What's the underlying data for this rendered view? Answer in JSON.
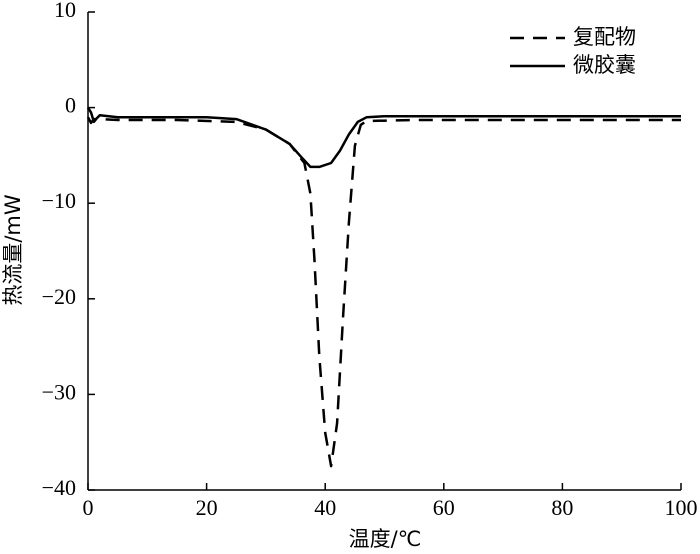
{
  "chart_data": {
    "type": "line",
    "xlabel": "温度/℃",
    "ylabel": "热流量/mW",
    "xlim": [
      0,
      100
    ],
    "ylim": [
      -40,
      10
    ],
    "xticks": [
      0,
      20,
      40,
      60,
      80,
      100
    ],
    "yticks": [
      {
        "value": -40,
        "label": "−40"
      },
      {
        "value": -30,
        "label": "−30"
      },
      {
        "value": -20,
        "label": "−20"
      },
      {
        "value": -10,
        "label": "−10"
      },
      0,
      10
    ],
    "legend": "upper right",
    "series": [
      {
        "name": "复配物",
        "color": "#000000",
        "dashed": true,
        "x": [
          0,
          0.5,
          1,
          2,
          5,
          15,
          25,
          30,
          34,
          36.5,
          37.5,
          38.2,
          39,
          40,
          41,
          42,
          43,
          44,
          45,
          46,
          47,
          55,
          100
        ],
        "values": [
          -1,
          -1.6,
          -1.2,
          -1.2,
          -1.3,
          -1.3,
          -1.5,
          -2.3,
          -3.8,
          -5.8,
          -9,
          -16,
          -26,
          -34,
          -37.5,
          -33,
          -22,
          -12,
          -4,
          -1.8,
          -1.4,
          -1.3,
          -1.3
        ]
      },
      {
        "name": "微胶囊",
        "color": "#000000",
        "dashed": false,
        "x": [
          0,
          0.5,
          1,
          1.5,
          2,
          5,
          15,
          20,
          25,
          30,
          34,
          36,
          37.5,
          39,
          41,
          42.5,
          44,
          45.5,
          47,
          50,
          100
        ],
        "values": [
          0,
          -0.5,
          -1.5,
          -1.1,
          -0.8,
          -1,
          -1,
          -1,
          -1.2,
          -2.3,
          -3.8,
          -5.2,
          -6.2,
          -6.2,
          -5.8,
          -4.5,
          -2.8,
          -1.5,
          -1,
          -0.9,
          -0.9
        ]
      }
    ]
  }
}
